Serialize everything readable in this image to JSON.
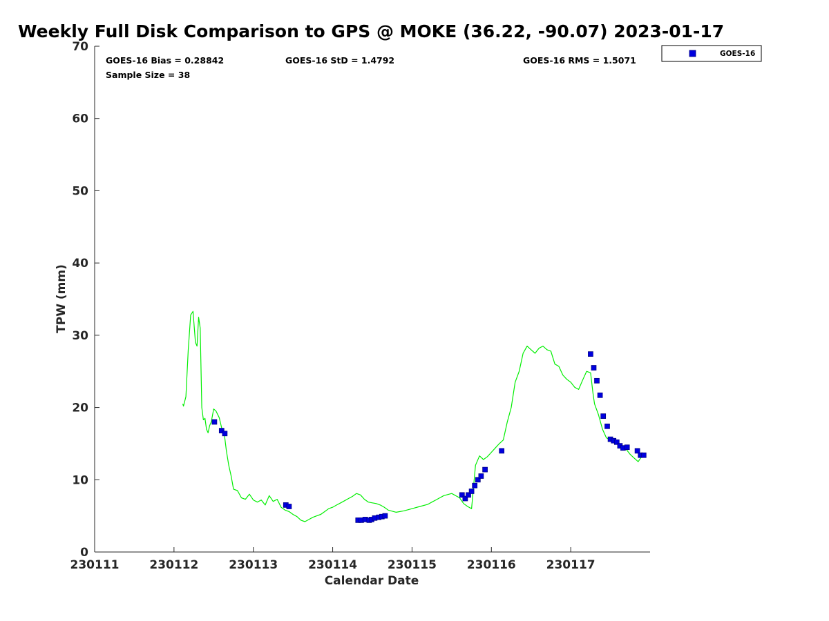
{
  "chart_data": {
    "type": "scatter",
    "title": "Weekly Full Disk Comparison to GPS @ MOKE (36.22, -90.07) 2023-01-17",
    "xlabel": "Calendar Date",
    "ylabel": "TPW (mm)",
    "xlim": [
      "230111",
      "230118"
    ],
    "ylim": [
      0,
      70
    ],
    "x_ticks": [
      "230111",
      "230112",
      "230113",
      "230114",
      "230115",
      "230116",
      "230117"
    ],
    "y_ticks": [
      0,
      10,
      20,
      30,
      40,
      50,
      60,
      70
    ],
    "grid": false,
    "legend_position": "outside-top-right",
    "stats": {
      "bias": "GOES-16 Bias = 0.28842",
      "std": "GOES-16 StD = 1.4792",
      "rms": "GOES-16 RMS = 1.5071",
      "sample": "Sample Size = 38"
    },
    "series": [
      {
        "name": "GOES-16",
        "kind": "scatter",
        "color": "#0000dd",
        "edge_color": "#000080",
        "x": [
          230112.51,
          230112.6,
          230112.64,
          230113.41,
          230113.45,
          230114.32,
          230114.36,
          230114.41,
          230114.46,
          230114.49,
          230114.53,
          230114.58,
          230114.62,
          230114.66,
          230115.63,
          230115.67,
          230115.71,
          230115.75,
          230115.79,
          230115.83,
          230115.87,
          230115.92,
          230116.13,
          230117.25,
          230117.29,
          230117.33,
          230117.37,
          230117.41,
          230117.46,
          230117.5,
          230117.54,
          230117.58,
          230117.62,
          230117.66,
          230117.71,
          230117.84,
          230117.88,
          230117.92
        ],
        "y": [
          18.0,
          16.8,
          16.4,
          6.5,
          6.3,
          4.4,
          4.4,
          4.5,
          4.4,
          4.5,
          4.7,
          4.8,
          4.9,
          5.0,
          7.9,
          7.4,
          7.9,
          8.4,
          9.2,
          10.0,
          10.5,
          11.4,
          14.0,
          27.4,
          25.5,
          23.7,
          21.7,
          18.8,
          17.4,
          15.6,
          15.4,
          15.2,
          14.7,
          14.4,
          14.5,
          14.0,
          13.4,
          13.4
        ]
      },
      {
        "kind": "line",
        "color": "#00ee00",
        "x": [
          230112.11,
          230112.12,
          230112.15,
          230112.18,
          230112.21,
          230112.24,
          230112.27,
          230112.29,
          230112.31,
          230112.33,
          230112.35,
          230112.37,
          230112.39,
          230112.41,
          230112.43,
          230112.45,
          230112.47,
          230112.5,
          230112.53,
          230112.57,
          230112.6,
          230112.63,
          230112.66,
          230112.69,
          230112.72,
          230112.75,
          230112.8,
          230112.85,
          230112.9,
          230112.95,
          230113.0,
          230113.05,
          230113.1,
          230113.15,
          230113.2,
          230113.25,
          230113.3,
          230113.35,
          230113.4,
          230113.45,
          230113.5,
          230113.55,
          230113.6,
          230113.65,
          230113.7,
          230113.75,
          230113.8,
          230113.85,
          230113.9,
          230113.95,
          230114.0,
          230114.05,
          230114.1,
          230114.15,
          230114.2,
          230114.25,
          230114.3,
          230114.35,
          230114.4,
          230114.45,
          230114.5,
          230114.55,
          230114.6,
          230114.65,
          230114.7,
          230114.8,
          230114.9,
          230115.0,
          230115.1,
          230115.2,
          230115.25,
          230115.3,
          230115.35,
          230115.4,
          230115.5,
          230115.6,
          230115.65,
          230115.7,
          230115.75,
          230115.8,
          230115.85,
          230115.9,
          230115.95,
          230116.0,
          230116.05,
          230116.1,
          230116.15,
          230116.2,
          230116.25,
          230116.3,
          230116.35,
          230116.4,
          230116.45,
          230116.5,
          230116.55,
          230116.6,
          230116.65,
          230116.7,
          230116.75,
          230116.8,
          230116.85,
          230116.9,
          230116.95,
          230117.0,
          230117.05,
          230117.1,
          230117.15,
          230117.2,
          230117.25,
          230117.28,
          230117.3,
          230117.35,
          230117.4,
          230117.45,
          230117.5,
          230117.55,
          230117.6,
          230117.65,
          230117.7,
          230117.75,
          230117.8,
          230117.85,
          230117.9,
          230117.94
        ],
        "y": [
          20.5,
          20.2,
          21.5,
          28.0,
          32.8,
          33.3,
          29.0,
          28.5,
          32.5,
          31.0,
          20.0,
          18.3,
          18.5,
          17.0,
          16.5,
          17.5,
          18.0,
          19.8,
          19.5,
          18.6,
          17.2,
          16.7,
          14.0,
          12.0,
          10.5,
          8.7,
          8.5,
          7.5,
          7.3,
          8.0,
          7.2,
          6.9,
          7.2,
          6.5,
          7.8,
          7.0,
          7.3,
          6.2,
          5.8,
          5.6,
          5.2,
          4.9,
          4.4,
          4.2,
          4.5,
          4.8,
          5.0,
          5.2,
          5.6,
          6.0,
          6.2,
          6.5,
          6.8,
          7.1,
          7.4,
          7.7,
          8.1,
          7.9,
          7.3,
          6.9,
          6.8,
          6.7,
          6.5,
          6.2,
          5.8,
          5.5,
          5.7,
          6.0,
          6.3,
          6.6,
          6.9,
          7.2,
          7.5,
          7.8,
          8.1,
          7.5,
          6.7,
          6.3,
          6.0,
          12.0,
          13.3,
          12.8,
          13.2,
          13.8,
          14.4,
          15.0,
          15.5,
          18.0,
          20.0,
          23.5,
          25.0,
          27.5,
          28.5,
          28.0,
          27.5,
          28.2,
          28.5,
          28.0,
          27.8,
          26.0,
          25.7,
          24.5,
          23.9,
          23.5,
          22.8,
          22.5,
          23.8,
          25.0,
          24.8,
          22.0,
          20.5,
          19.0,
          17.0,
          15.8,
          15.5,
          15.3,
          15.0,
          14.7,
          14.2,
          13.5,
          13.0,
          12.5,
          13.3,
          13.6
        ]
      }
    ]
  }
}
